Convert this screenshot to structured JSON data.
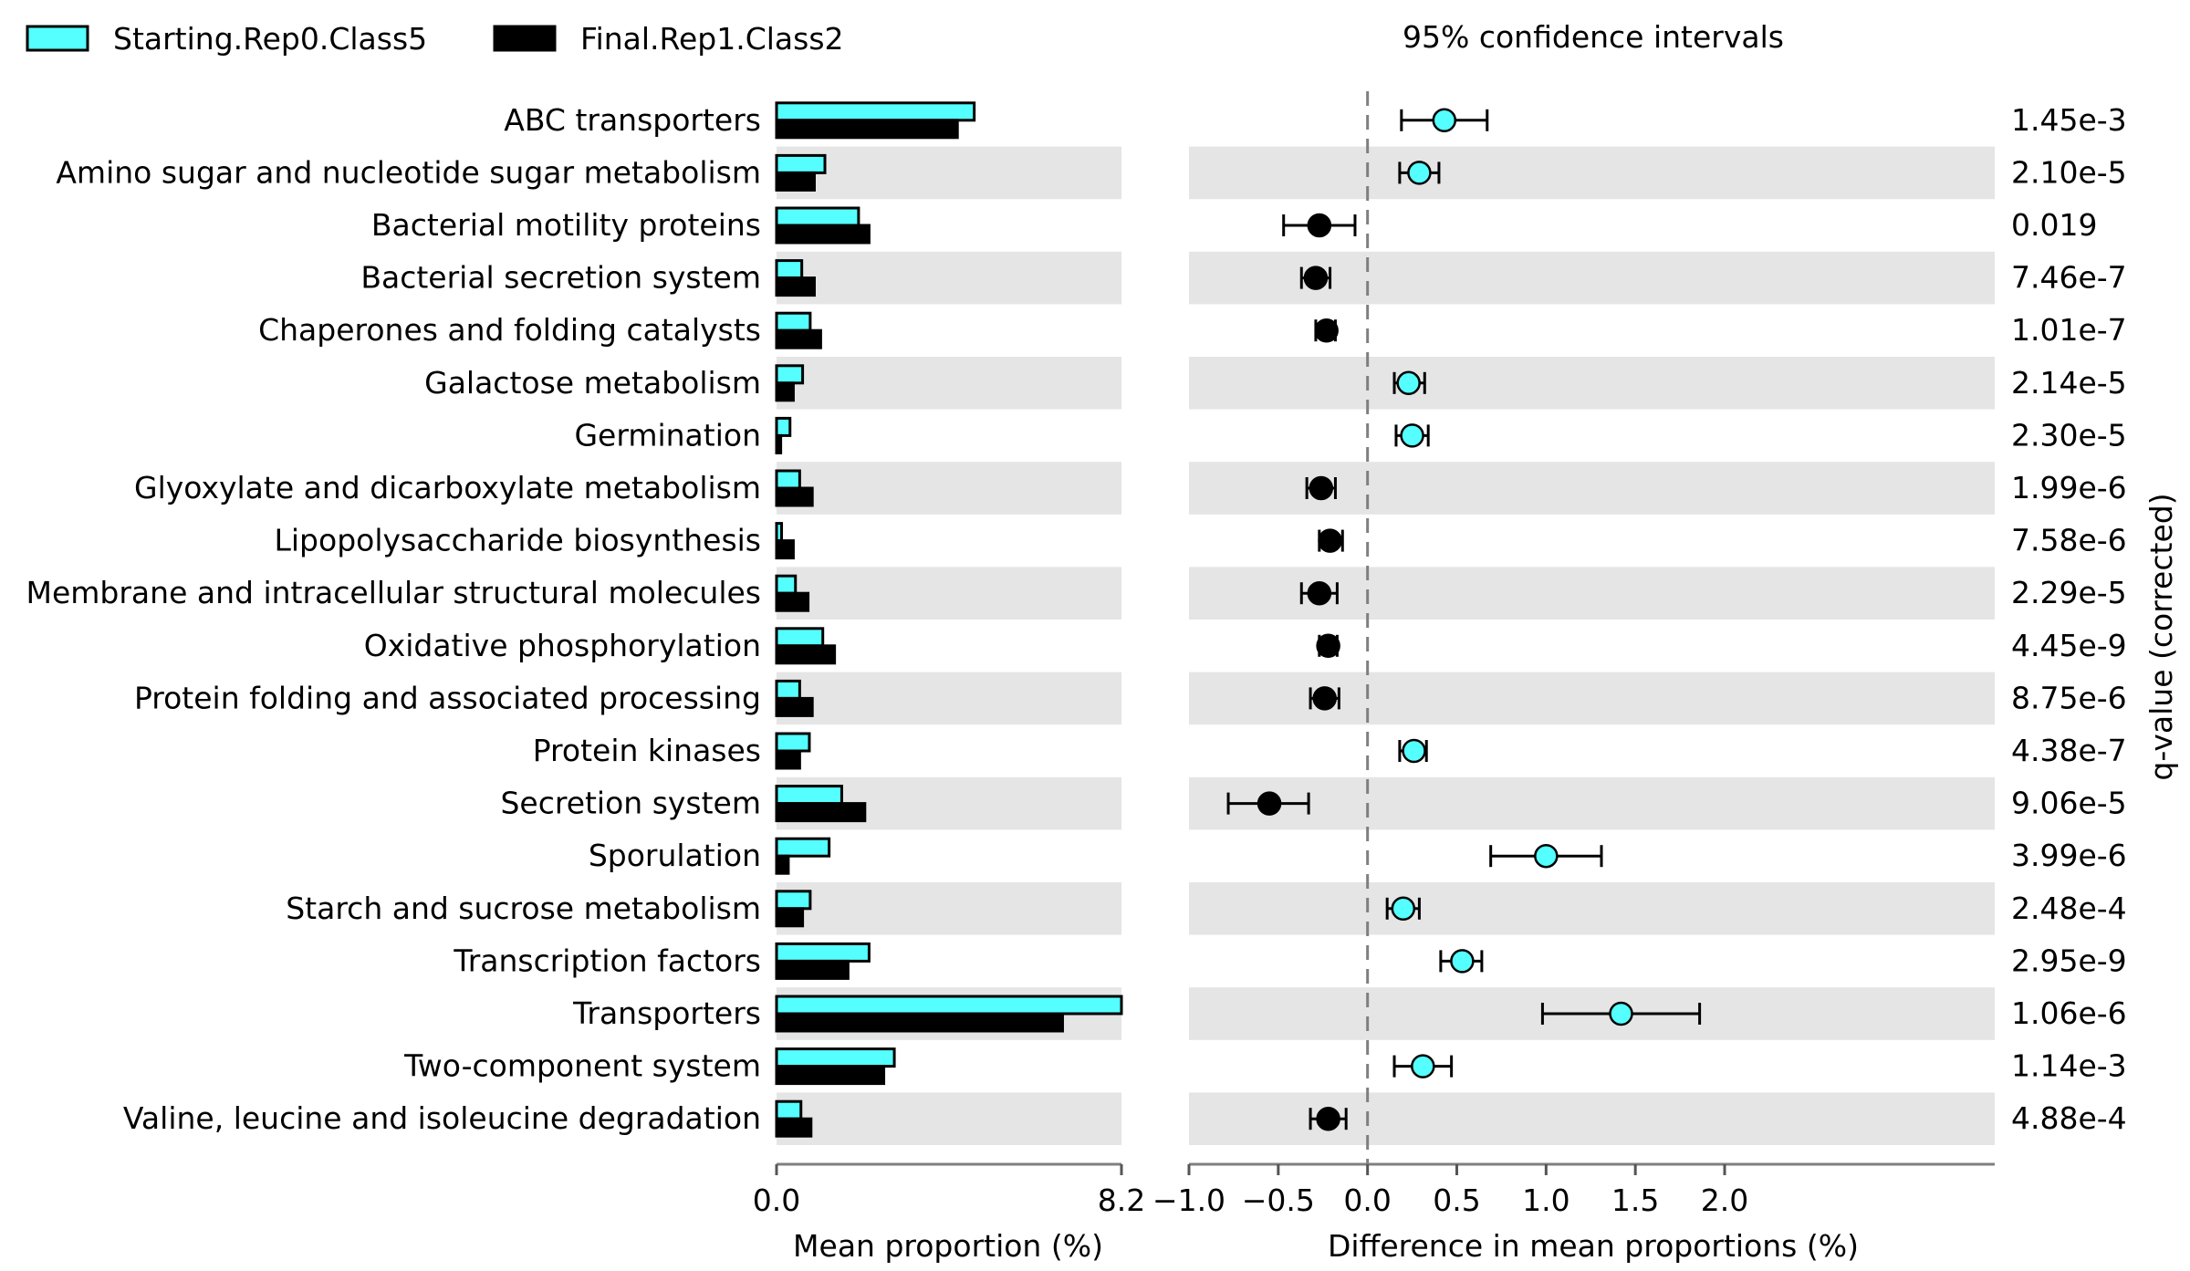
{
  "legend": {
    "items": [
      {
        "label": "Starting.Rep0.Class5",
        "color": "#55ffff"
      },
      {
        "label": "Final.Rep1.Class2",
        "color": "#000000"
      }
    ]
  },
  "ci_title": "95% confidence intervals",
  "qvalue_label": "q-value (corrected)",
  "colors": {
    "starting": "#55ffff",
    "final": "#000000",
    "band": "#e5e5e5",
    "axis": "#7f7f7f"
  },
  "chart_data": [
    {
      "type": "bar",
      "orientation": "horizontal",
      "xlabel": "Mean proportion (%)",
      "xlim": [
        0,
        8.2
      ],
      "xticks": [
        "0.0",
        "8.2"
      ],
      "categories": [
        "ABC transporters",
        "Amino sugar and nucleotide sugar metabolism",
        "Bacterial motility proteins",
        "Bacterial secretion system",
        "Chaperones and folding catalysts",
        "Galactose metabolism",
        "Germination",
        "Glyoxylate and dicarboxylate metabolism",
        "Lipopolysaccharide biosynthesis",
        "Membrane and intracellular structural molecules",
        "Oxidative phosphorylation",
        "Protein folding and associated processing",
        "Protein kinases",
        "Secretion system",
        "Sporulation",
        "Starch and sucrose metabolism",
        "Transcription factors",
        "Transporters",
        "Two-component system",
        "Valine, leucine and isoleucine degradation"
      ],
      "series": [
        {
          "name": "Starting.Rep0.Class5",
          "values": [
            4.7,
            1.15,
            1.95,
            0.6,
            0.8,
            0.62,
            0.32,
            0.55,
            0.12,
            0.45,
            1.1,
            0.55,
            0.78,
            1.55,
            1.25,
            0.8,
            2.2,
            8.2,
            2.8,
            0.58
          ]
        },
        {
          "name": "Final.Rep1.Class2",
          "values": [
            4.3,
            0.9,
            2.2,
            0.9,
            1.05,
            0.4,
            0.1,
            0.85,
            0.4,
            0.75,
            1.38,
            0.85,
            0.55,
            2.1,
            0.28,
            0.62,
            1.7,
            6.8,
            2.55,
            0.82
          ]
        }
      ]
    },
    {
      "type": "scatter",
      "subtype": "error_bar",
      "title": "95% confidence intervals",
      "xlabel": "Difference in mean proportions (%)",
      "xlim": [
        -1.0,
        2.0
      ],
      "xticks": [
        "−1.0",
        "−0.5",
        "0.0",
        "0.5",
        "1.0",
        "1.5",
        "2.0"
      ],
      "reference_line": 0,
      "points": [
        {
          "category": "ABC transporters",
          "diff": 0.43,
          "ci": [
            0.19,
            0.67
          ],
          "group": "Starting.Rep0.Class5"
        },
        {
          "category": "Amino sugar and nucleotide sugar metabolism",
          "diff": 0.29,
          "ci": [
            0.18,
            0.4
          ],
          "group": "Starting.Rep0.Class5"
        },
        {
          "category": "Bacterial motility proteins",
          "diff": -0.27,
          "ci": [
            -0.47,
            -0.07
          ],
          "group": "Final.Rep1.Class2"
        },
        {
          "category": "Bacterial secretion system",
          "diff": -0.29,
          "ci": [
            -0.37,
            -0.21
          ],
          "group": "Final.Rep1.Class2"
        },
        {
          "category": "Chaperones and folding catalysts",
          "diff": -0.23,
          "ci": [
            -0.29,
            -0.18
          ],
          "group": "Final.Rep1.Class2"
        },
        {
          "category": "Galactose metabolism",
          "diff": 0.23,
          "ci": [
            0.15,
            0.32
          ],
          "group": "Starting.Rep0.Class5"
        },
        {
          "category": "Germination",
          "diff": 0.25,
          "ci": [
            0.16,
            0.34
          ],
          "group": "Starting.Rep0.Class5"
        },
        {
          "category": "Glyoxylate and dicarboxylate metabolism",
          "diff": -0.26,
          "ci": [
            -0.34,
            -0.18
          ],
          "group": "Final.Rep1.Class2"
        },
        {
          "category": "Lipopolysaccharide biosynthesis",
          "diff": -0.21,
          "ci": [
            -0.27,
            -0.14
          ],
          "group": "Final.Rep1.Class2"
        },
        {
          "category": "Membrane and intracellular structural molecules",
          "diff": -0.27,
          "ci": [
            -0.37,
            -0.17
          ],
          "group": "Final.Rep1.Class2"
        },
        {
          "category": "Oxidative phosphorylation",
          "diff": -0.22,
          "ci": [
            -0.27,
            -0.17
          ],
          "group": "Final.Rep1.Class2"
        },
        {
          "category": "Protein folding and associated processing",
          "diff": -0.24,
          "ci": [
            -0.32,
            -0.16
          ],
          "group": "Final.Rep1.Class2"
        },
        {
          "category": "Protein kinases",
          "diff": 0.26,
          "ci": [
            0.18,
            0.33
          ],
          "group": "Starting.Rep0.Class5"
        },
        {
          "category": "Secretion system",
          "diff": -0.55,
          "ci": [
            -0.78,
            -0.33
          ],
          "group": "Final.Rep1.Class2"
        },
        {
          "category": "Sporulation",
          "diff": 1.0,
          "ci": [
            0.69,
            1.31
          ],
          "group": "Starting.Rep0.Class5"
        },
        {
          "category": "Starch and sucrose metabolism",
          "diff": 0.2,
          "ci": [
            0.11,
            0.29
          ],
          "group": "Starting.Rep0.Class5"
        },
        {
          "category": "Transcription factors",
          "diff": 0.53,
          "ci": [
            0.41,
            0.64
          ],
          "group": "Starting.Rep0.Class5"
        },
        {
          "category": "Transporters",
          "diff": 1.42,
          "ci": [
            0.98,
            1.86
          ],
          "group": "Starting.Rep0.Class5"
        },
        {
          "category": "Two-component system",
          "diff": 0.31,
          "ci": [
            0.15,
            0.47
          ],
          "group": "Starting.Rep0.Class5"
        },
        {
          "category": "Valine, leucine and isoleucine degradation",
          "diff": -0.22,
          "ci": [
            -0.32,
            -0.12
          ],
          "group": "Final.Rep1.Class2"
        }
      ]
    },
    {
      "type": "table",
      "ylabel": "q-value (corrected)",
      "values": [
        "1.45e-3",
        "2.10e-5",
        "0.019",
        "7.46e-7",
        "1.01e-7",
        "2.14e-5",
        "2.30e-5",
        "1.99e-6",
        "7.58e-6",
        "2.29e-5",
        "4.45e-9",
        "8.75e-6",
        "4.38e-7",
        "9.06e-5",
        "3.99e-6",
        "2.48e-4",
        "2.95e-9",
        "1.06e-6",
        "1.14e-3",
        "4.88e-4"
      ]
    }
  ]
}
